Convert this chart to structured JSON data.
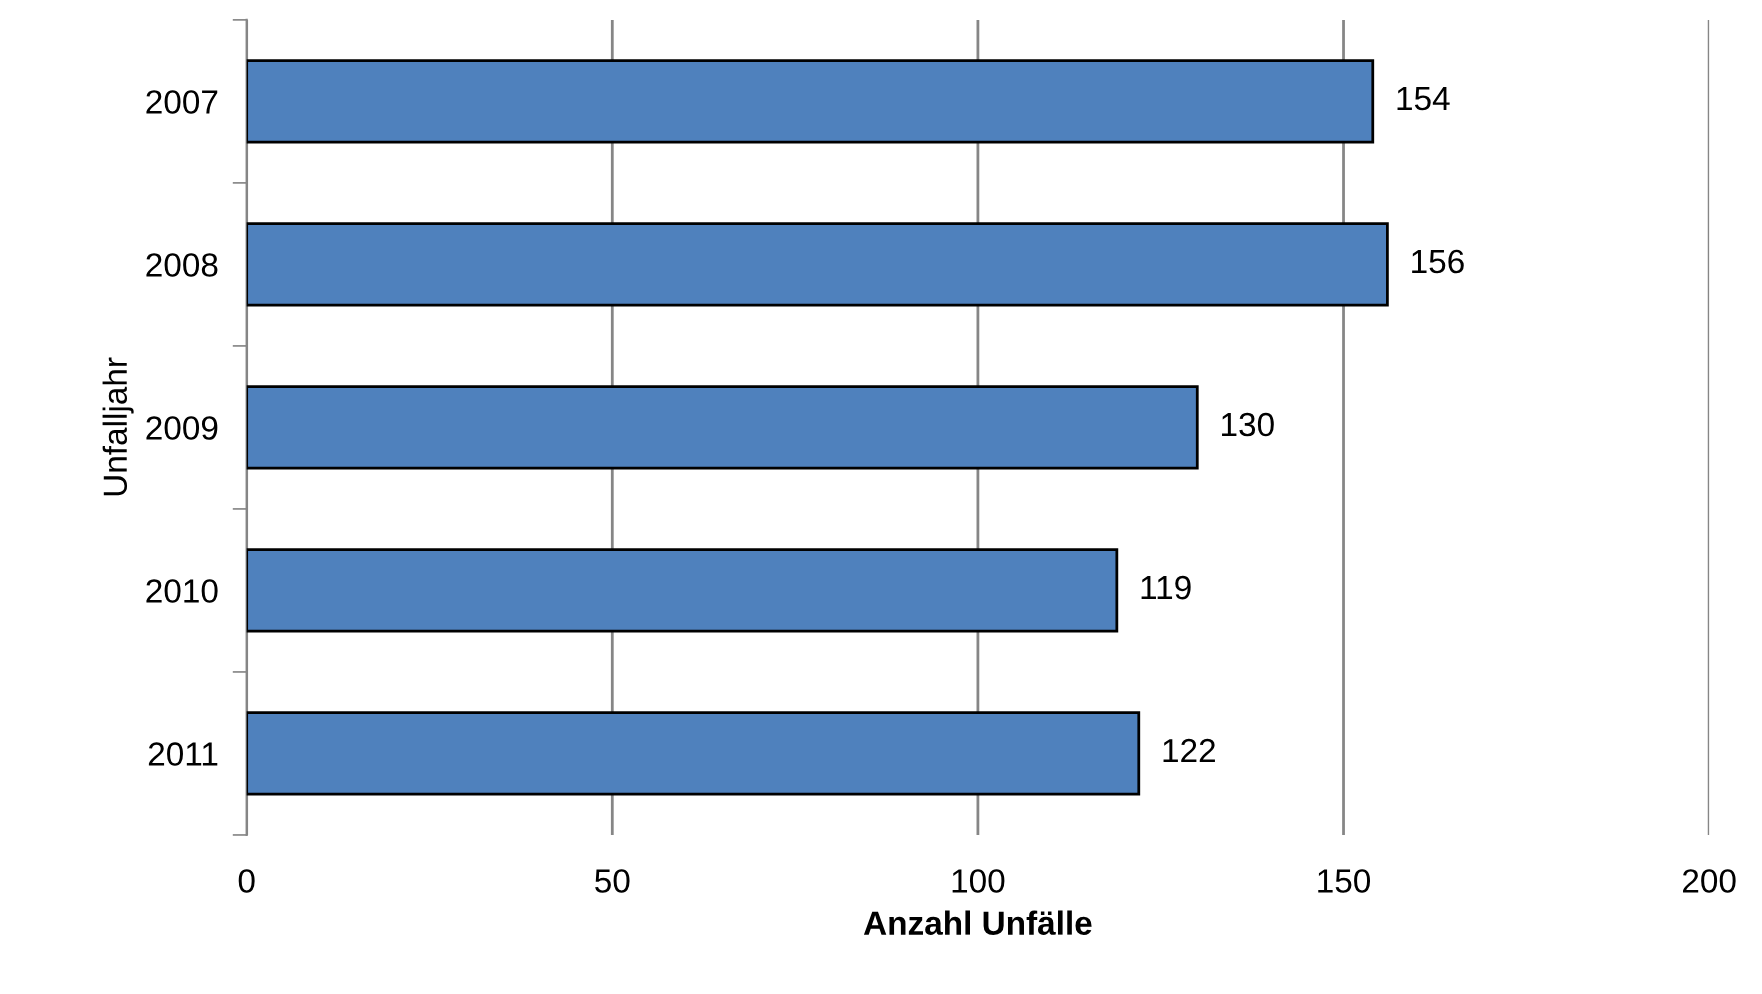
{
  "chart_data": {
    "type": "bar",
    "orientation": "horizontal",
    "xlabel": "Anzahl Unfälle",
    "ylabel": "Unfalljahr",
    "categories": [
      "2007",
      "2008",
      "2009",
      "2010",
      "2011"
    ],
    "values": [
      154,
      156,
      130,
      119,
      122
    ],
    "color": "#4f81bd",
    "xlim": [
      0,
      200
    ],
    "xticks": [
      0,
      50,
      100,
      150,
      200
    ],
    "grid": "x",
    "data_labels": true
  }
}
